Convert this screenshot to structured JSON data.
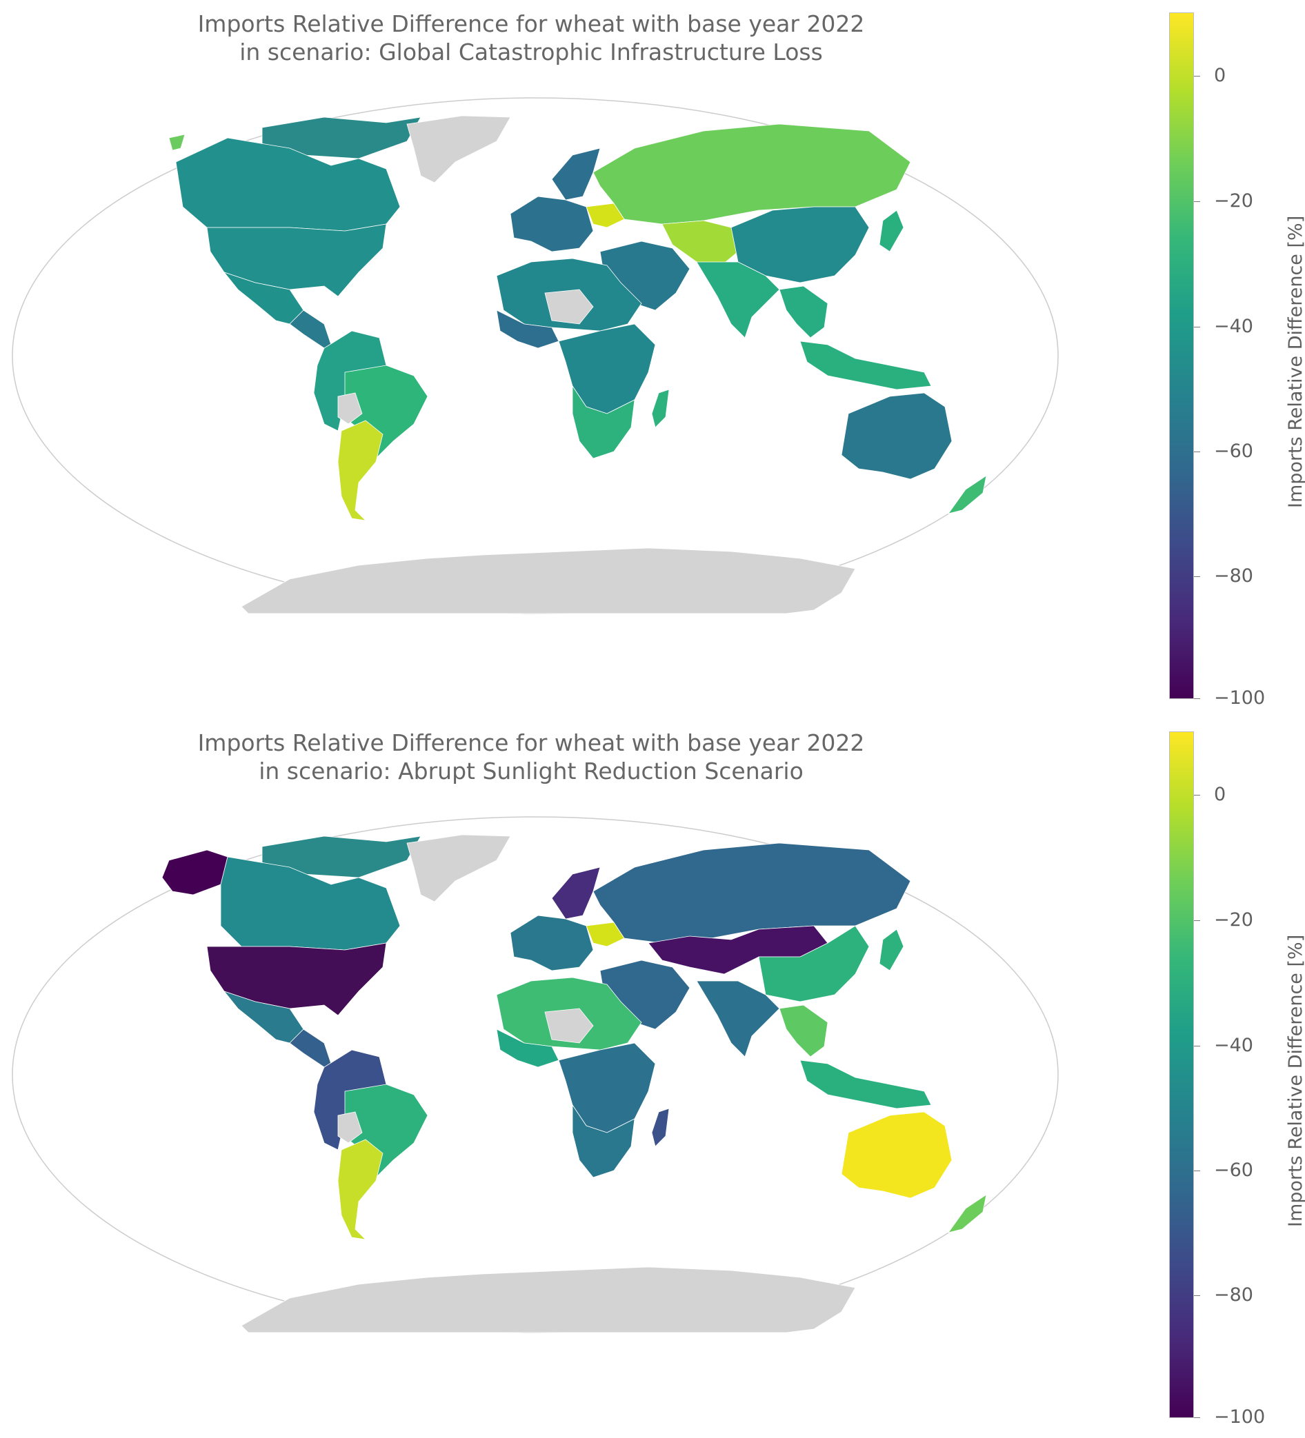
{
  "panels": [
    {
      "title_line1": "Imports Relative Difference for wheat with base year 2022",
      "title_line2": "in scenario: Global Catastrophic Infrastructure Loss",
      "colorbar": {
        "label": "Imports Relative Difference [%]",
        "ticks": [
          "0",
          "−20",
          "−40",
          "−60",
          "−80",
          "−100"
        ],
        "tick_values": [
          0,
          -20,
          -40,
          -60,
          -80,
          -100
        ],
        "range": [
          -100,
          10
        ],
        "colormap": "viridis"
      },
      "regions": {
        "north_america_arctic": "#2a8a8a",
        "canada": "#22908c",
        "alaska": "#6ccb5f",
        "usa": "#22908c",
        "mexico": "#21918c",
        "central_america": "#2a7b8e",
        "south_america_north": "#25a18a",
        "brazil": "#2db57a",
        "bolivia": "#d3d3d3",
        "argentina": "#c8df2a",
        "greenland": "#d3d3d3",
        "europe": "#2c728e",
        "scandinavia": "#2d6f8e",
        "ukraine": "#d5e21a",
        "russia": "#6ccd5a",
        "central_asia": "#a2da37",
        "middle_east": "#29798e",
        "north_africa": "#23888e",
        "sahara": "#d3d3d3",
        "west_africa": "#2e6e8e",
        "central_africa": "#23888e",
        "southern_africa": "#2db27d",
        "madagascar": "#2db27d",
        "india": "#27ad81",
        "china": "#238a8d",
        "southeast_asia": "#27ad81",
        "indonesia": "#2ab07f",
        "australia": "#2a788e",
        "new_zealand": "#3ebc74",
        "japan": "#2ab07f",
        "antarctica": "#d3d3d3"
      }
    },
    {
      "title_line1": "Imports Relative Difference for wheat with base year 2022",
      "title_line2": "in scenario: Abrupt Sunlight Reduction Scenario",
      "colorbar": {
        "label": "Imports Relative Difference [%]",
        "ticks": [
          "0",
          "−20",
          "−40",
          "−60",
          "−80",
          "−100"
        ],
        "tick_values": [
          0,
          -20,
          -40,
          -60,
          -80,
          -100
        ],
        "range": [
          -100,
          10
        ],
        "colormap": "viridis"
      },
      "regions": {
        "north_america_arctic": "#2a8a8a",
        "canada": "#238a8d",
        "alaska": "#440154",
        "usa": "#440e57",
        "mexico": "#2a7b8e",
        "central_america": "#33608d",
        "south_america_north": "#3b518b",
        "brazil": "#2db27d",
        "bolivia": "#d3d3d3",
        "argentina": "#c8df2a",
        "greenland": "#d3d3d3",
        "europe": "#2a788e",
        "scandinavia": "#472d7b",
        "ukraine": "#d5e21a",
        "russia": "#31688e",
        "central_asia": "#471164",
        "middle_east": "#31688e",
        "north_africa": "#3ebc74",
        "sahara": "#d3d3d3",
        "west_africa": "#22a884",
        "central_africa": "#2c728e",
        "southern_africa": "#2a788e",
        "madagascar": "#3b528b",
        "india": "#2c728e",
        "china": "#2db27d",
        "southeast_asia": "#5ec962",
        "indonesia": "#2ab07f",
        "australia": "#f4e61e",
        "new_zealand": "#6ccd5a",
        "japan": "#2db27d",
        "antarctica": "#d3d3d3"
      }
    }
  ]
}
